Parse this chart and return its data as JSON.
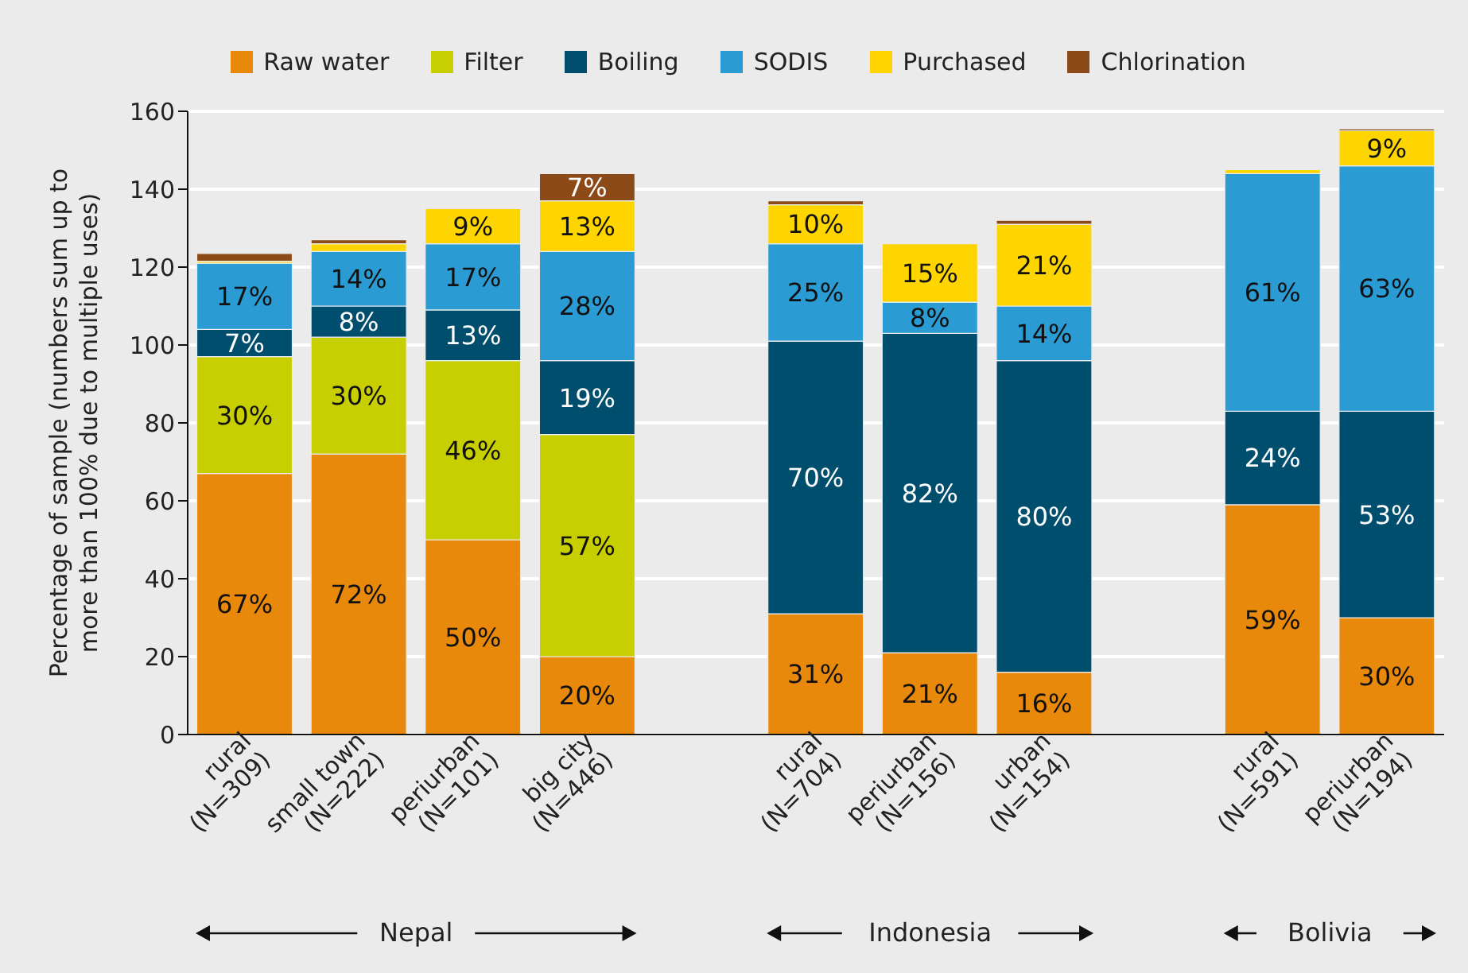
{
  "chart_data": {
    "type": "bar",
    "stacked": true,
    "ylabel": "Percentage of sample (numbers sum up to\nmore than 100% due to multiple uses)",
    "categories": [
      "rural\n(N=309)",
      "small town\n(N=222)",
      "periurban\n(N=101)",
      "big city\n(N=446)",
      null,
      "rural\n(N=704)",
      "periurban\n(N=156)",
      "urban\n(N=154)",
      null,
      "rural\n(N=591)",
      "periurban\n(N=194)"
    ],
    "series": [
      {
        "name": "Raw water",
        "color": "#e8890c",
        "values": [
          67,
          72,
          50,
          20,
          null,
          31,
          21,
          16,
          null,
          59,
          30
        ],
        "value_labels": [
          "67%",
          "72%",
          "50%",
          "20%",
          null,
          "31%",
          "21%",
          "16%",
          null,
          "59%",
          "30%"
        ]
      },
      {
        "name": "Filter",
        "color": "#c8cf00",
        "values": [
          30,
          30,
          46,
          57,
          null,
          null,
          null,
          null,
          null,
          null,
          null
        ],
        "value_labels": [
          "30%",
          "30%",
          "46%",
          "57%",
          null,
          null,
          null,
          null,
          null,
          null,
          null
        ]
      },
      {
        "name": "Boiling",
        "color": "#004e6e",
        "values": [
          7,
          8,
          13,
          19,
          null,
          70,
          82,
          80,
          null,
          24,
          53
        ],
        "value_labels": [
          "7%",
          "8%",
          "13%",
          "19%",
          null,
          "70%",
          "82%",
          "80%",
          null,
          "24%",
          "53%"
        ]
      },
      {
        "name": "SODIS",
        "color": "#2a9bd3",
        "values": [
          17,
          14,
          17,
          28,
          null,
          25,
          8,
          14,
          null,
          61,
          63
        ],
        "value_labels": [
          "17%",
          "14%",
          "17%",
          "28%",
          null,
          "25%",
          "8%",
          "14%",
          null,
          "61%",
          "63%"
        ]
      },
      {
        "name": "Purchased",
        "color": "#ffd500",
        "values": [
          0.5,
          2,
          9,
          13,
          null,
          10,
          15,
          21,
          null,
          1,
          9
        ],
        "value_labels": [
          null,
          null,
          "9%",
          "13%",
          null,
          "10%",
          "15%",
          "21%",
          null,
          null,
          "9%"
        ]
      },
      {
        "name": "Chlorination",
        "color": "#8b4a18",
        "values": [
          2,
          1,
          null,
          7,
          null,
          1,
          null,
          1,
          null,
          null,
          0.5
        ],
        "value_labels": [
          null,
          null,
          null,
          "7%",
          null,
          null,
          null,
          null,
          null,
          null,
          null
        ]
      }
    ],
    "ylim": [
      0,
      160
    ],
    "yticks": [
      0,
      20,
      40,
      60,
      80,
      100,
      120,
      140,
      160
    ],
    "grid": "y",
    "legend": "top",
    "annotations": [
      "Nepal",
      "Indonesia",
      "Bolivia"
    ]
  }
}
